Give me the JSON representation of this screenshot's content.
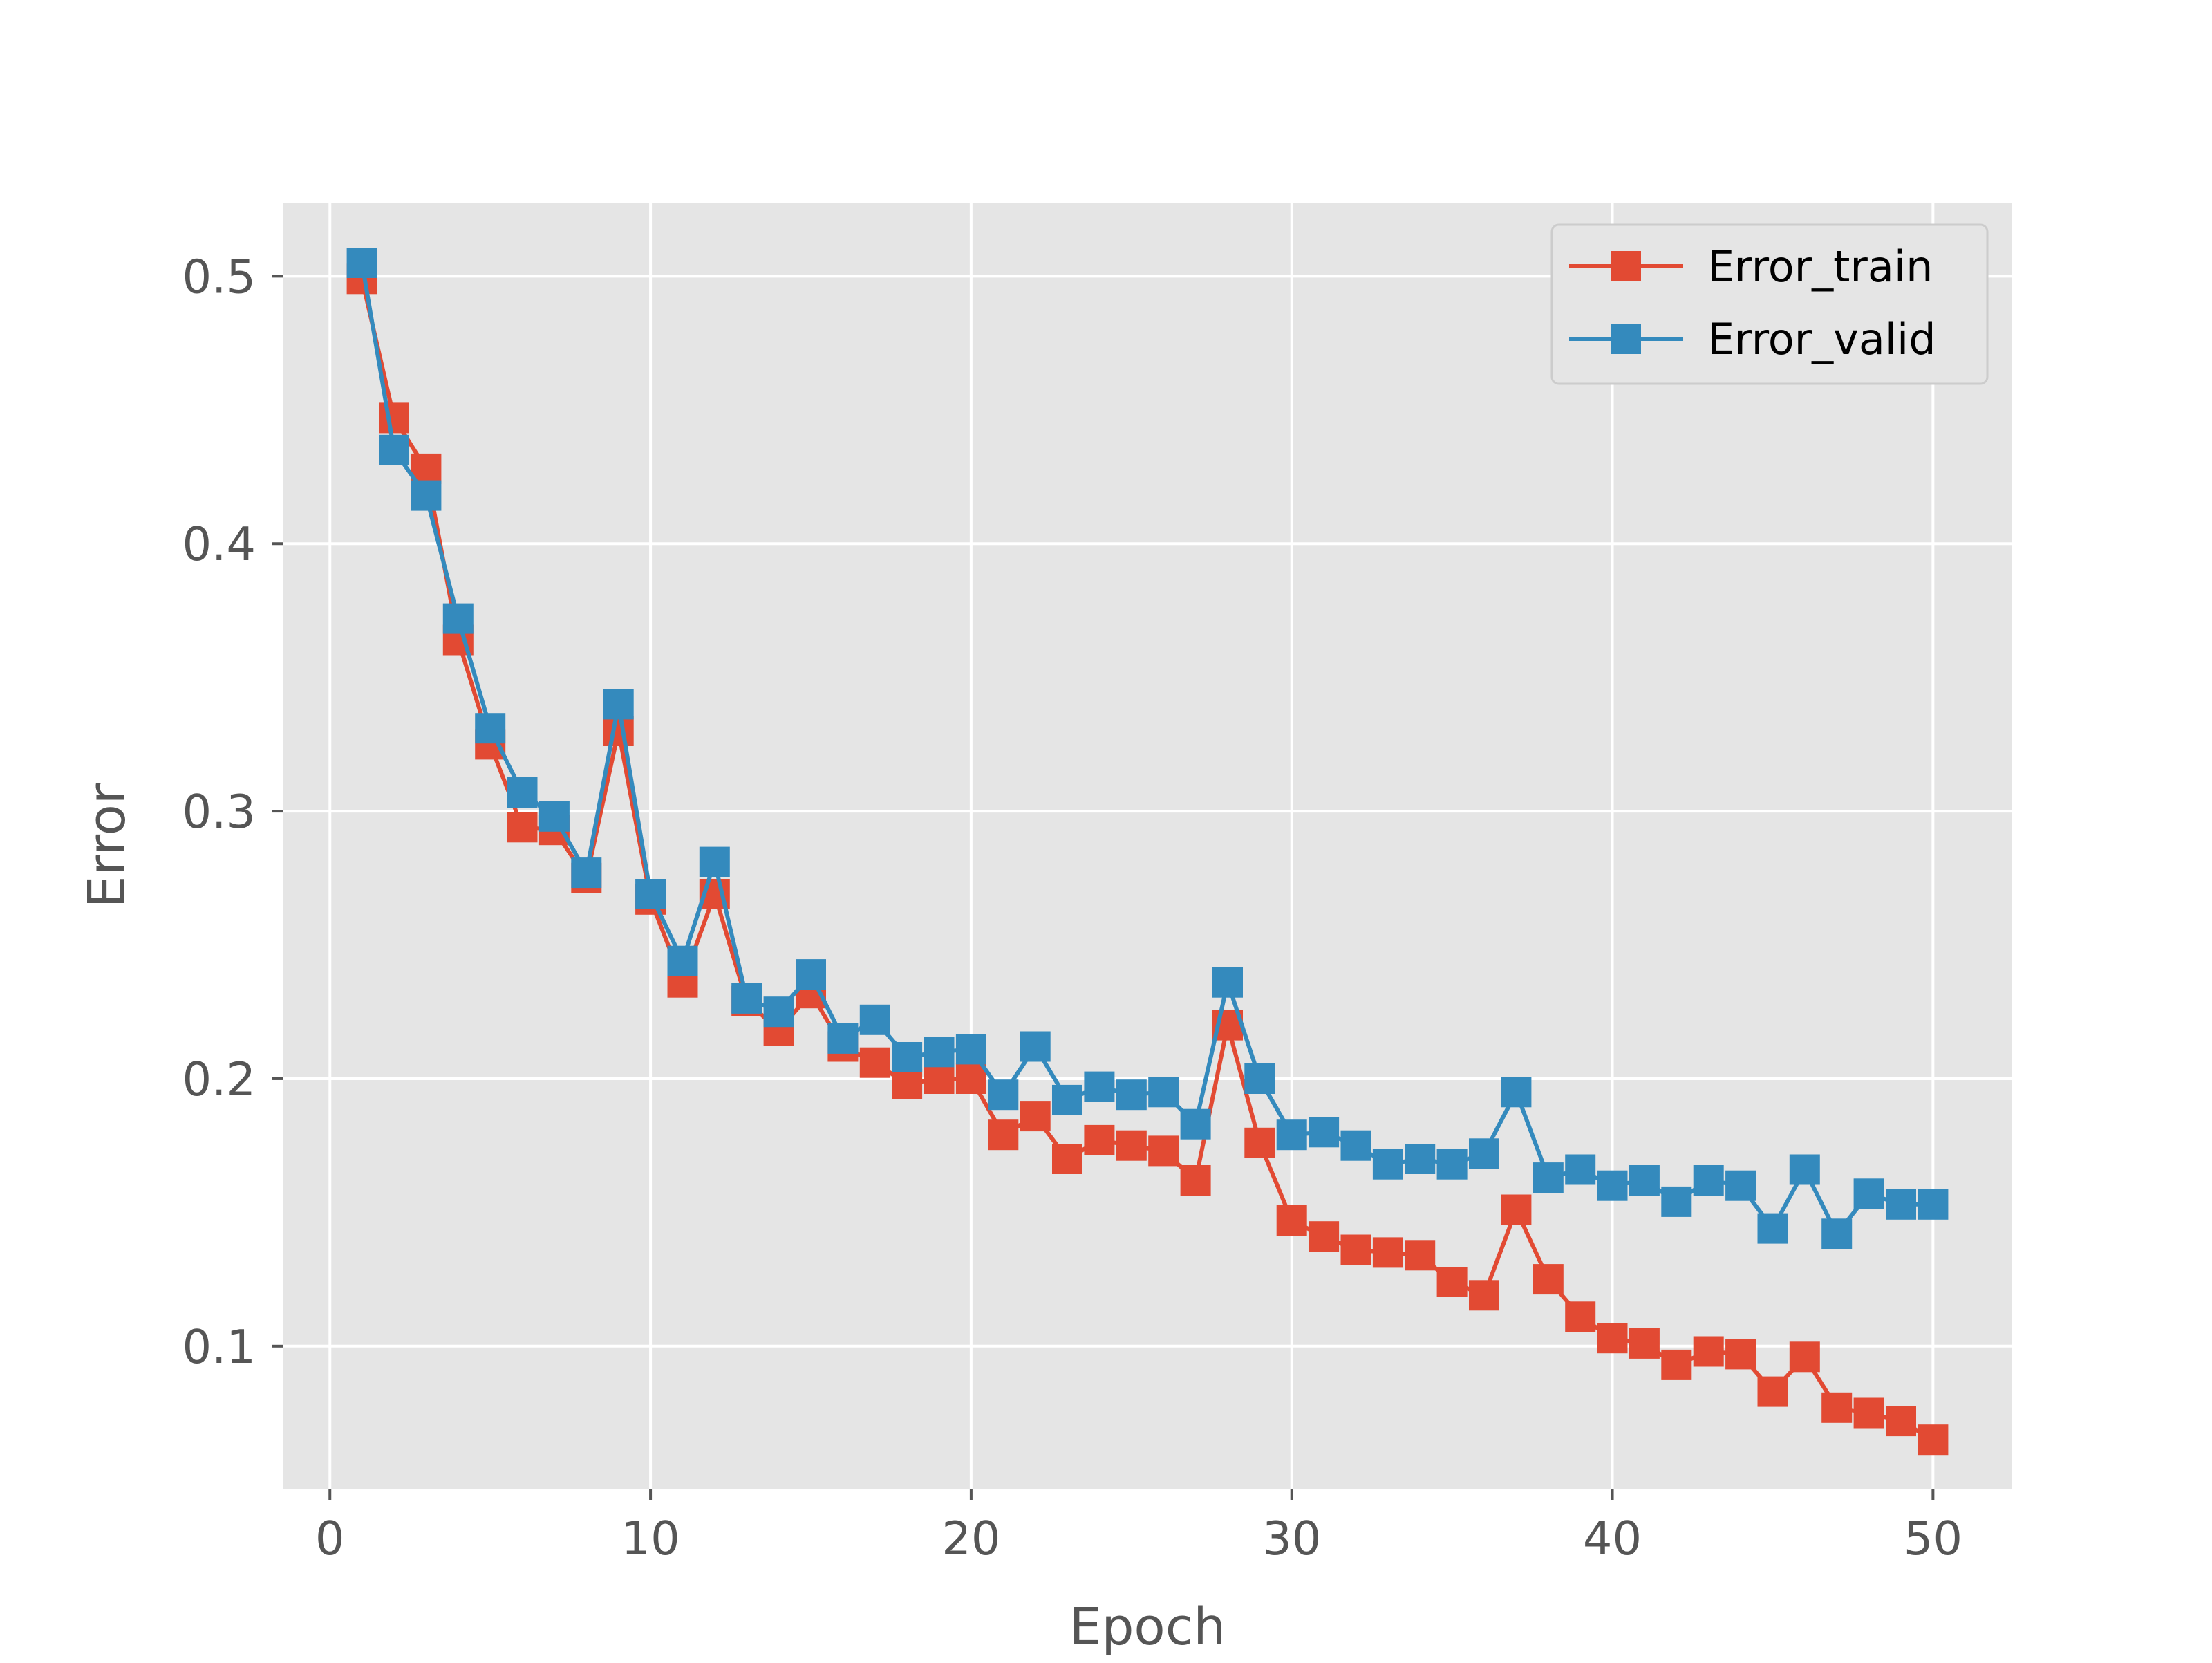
{
  "chart_data": {
    "type": "line",
    "xlabel": "Epoch",
    "ylabel": "Error",
    "xlim": [
      -1.45,
      52.45
    ],
    "ylim": [
      0.0467,
      0.5275
    ],
    "xticks": [
      0,
      10,
      20,
      30,
      40,
      50
    ],
    "yticks": [
      0.1,
      0.2,
      0.3,
      0.4,
      0.5
    ],
    "ytick_labels": [
      "0.1",
      "0.2",
      "0.3",
      "0.4",
      "0.5"
    ],
    "grid": true,
    "legend_position": "top-right",
    "marker": "square",
    "background": "#e5e5e5",
    "x": [
      1,
      2,
      3,
      4,
      5,
      6,
      7,
      8,
      9,
      10,
      11,
      12,
      13,
      14,
      15,
      16,
      17,
      18,
      19,
      20,
      21,
      22,
      23,
      24,
      25,
      26,
      27,
      28,
      29,
      30,
      31,
      32,
      33,
      34,
      35,
      36,
      37,
      38,
      39,
      40,
      41,
      42,
      43,
      44,
      45,
      46,
      47,
      48,
      49,
      50
    ],
    "series": [
      {
        "name": "Error_train",
        "color": "#e24a33",
        "values": [
          0.499,
          0.447,
          0.428,
          0.364,
          0.325,
          0.294,
          0.293,
          0.275,
          0.33,
          0.267,
          0.236,
          0.269,
          0.229,
          0.218,
          0.232,
          0.212,
          0.206,
          0.198,
          0.2,
          0.2,
          0.179,
          0.186,
          0.17,
          0.177,
          0.175,
          0.173,
          0.162,
          0.22,
          0.176,
          0.147,
          0.141,
          0.136,
          0.135,
          0.134,
          0.124,
          0.119,
          0.151,
          0.125,
          0.111,
          0.103,
          0.101,
          0.093,
          0.098,
          0.097,
          0.083,
          0.096,
          0.077,
          0.075,
          0.072,
          0.065
        ]
      },
      {
        "name": "Error_valid",
        "color": "#348abd",
        "values": [
          0.505,
          0.435,
          0.418,
          0.372,
          0.331,
          0.307,
          0.298,
          0.277,
          0.34,
          0.269,
          0.244,
          0.281,
          0.23,
          0.225,
          0.239,
          0.215,
          0.222,
          0.208,
          0.21,
          0.211,
          0.194,
          0.212,
          0.192,
          0.197,
          0.194,
          0.195,
          0.183,
          0.236,
          0.2,
          0.179,
          0.18,
          0.175,
          0.168,
          0.17,
          0.168,
          0.172,
          0.195,
          0.163,
          0.166,
          0.16,
          0.162,
          0.154,
          0.162,
          0.16,
          0.144,
          0.166,
          0.142,
          0.157,
          0.153,
          0.153
        ]
      }
    ]
  }
}
